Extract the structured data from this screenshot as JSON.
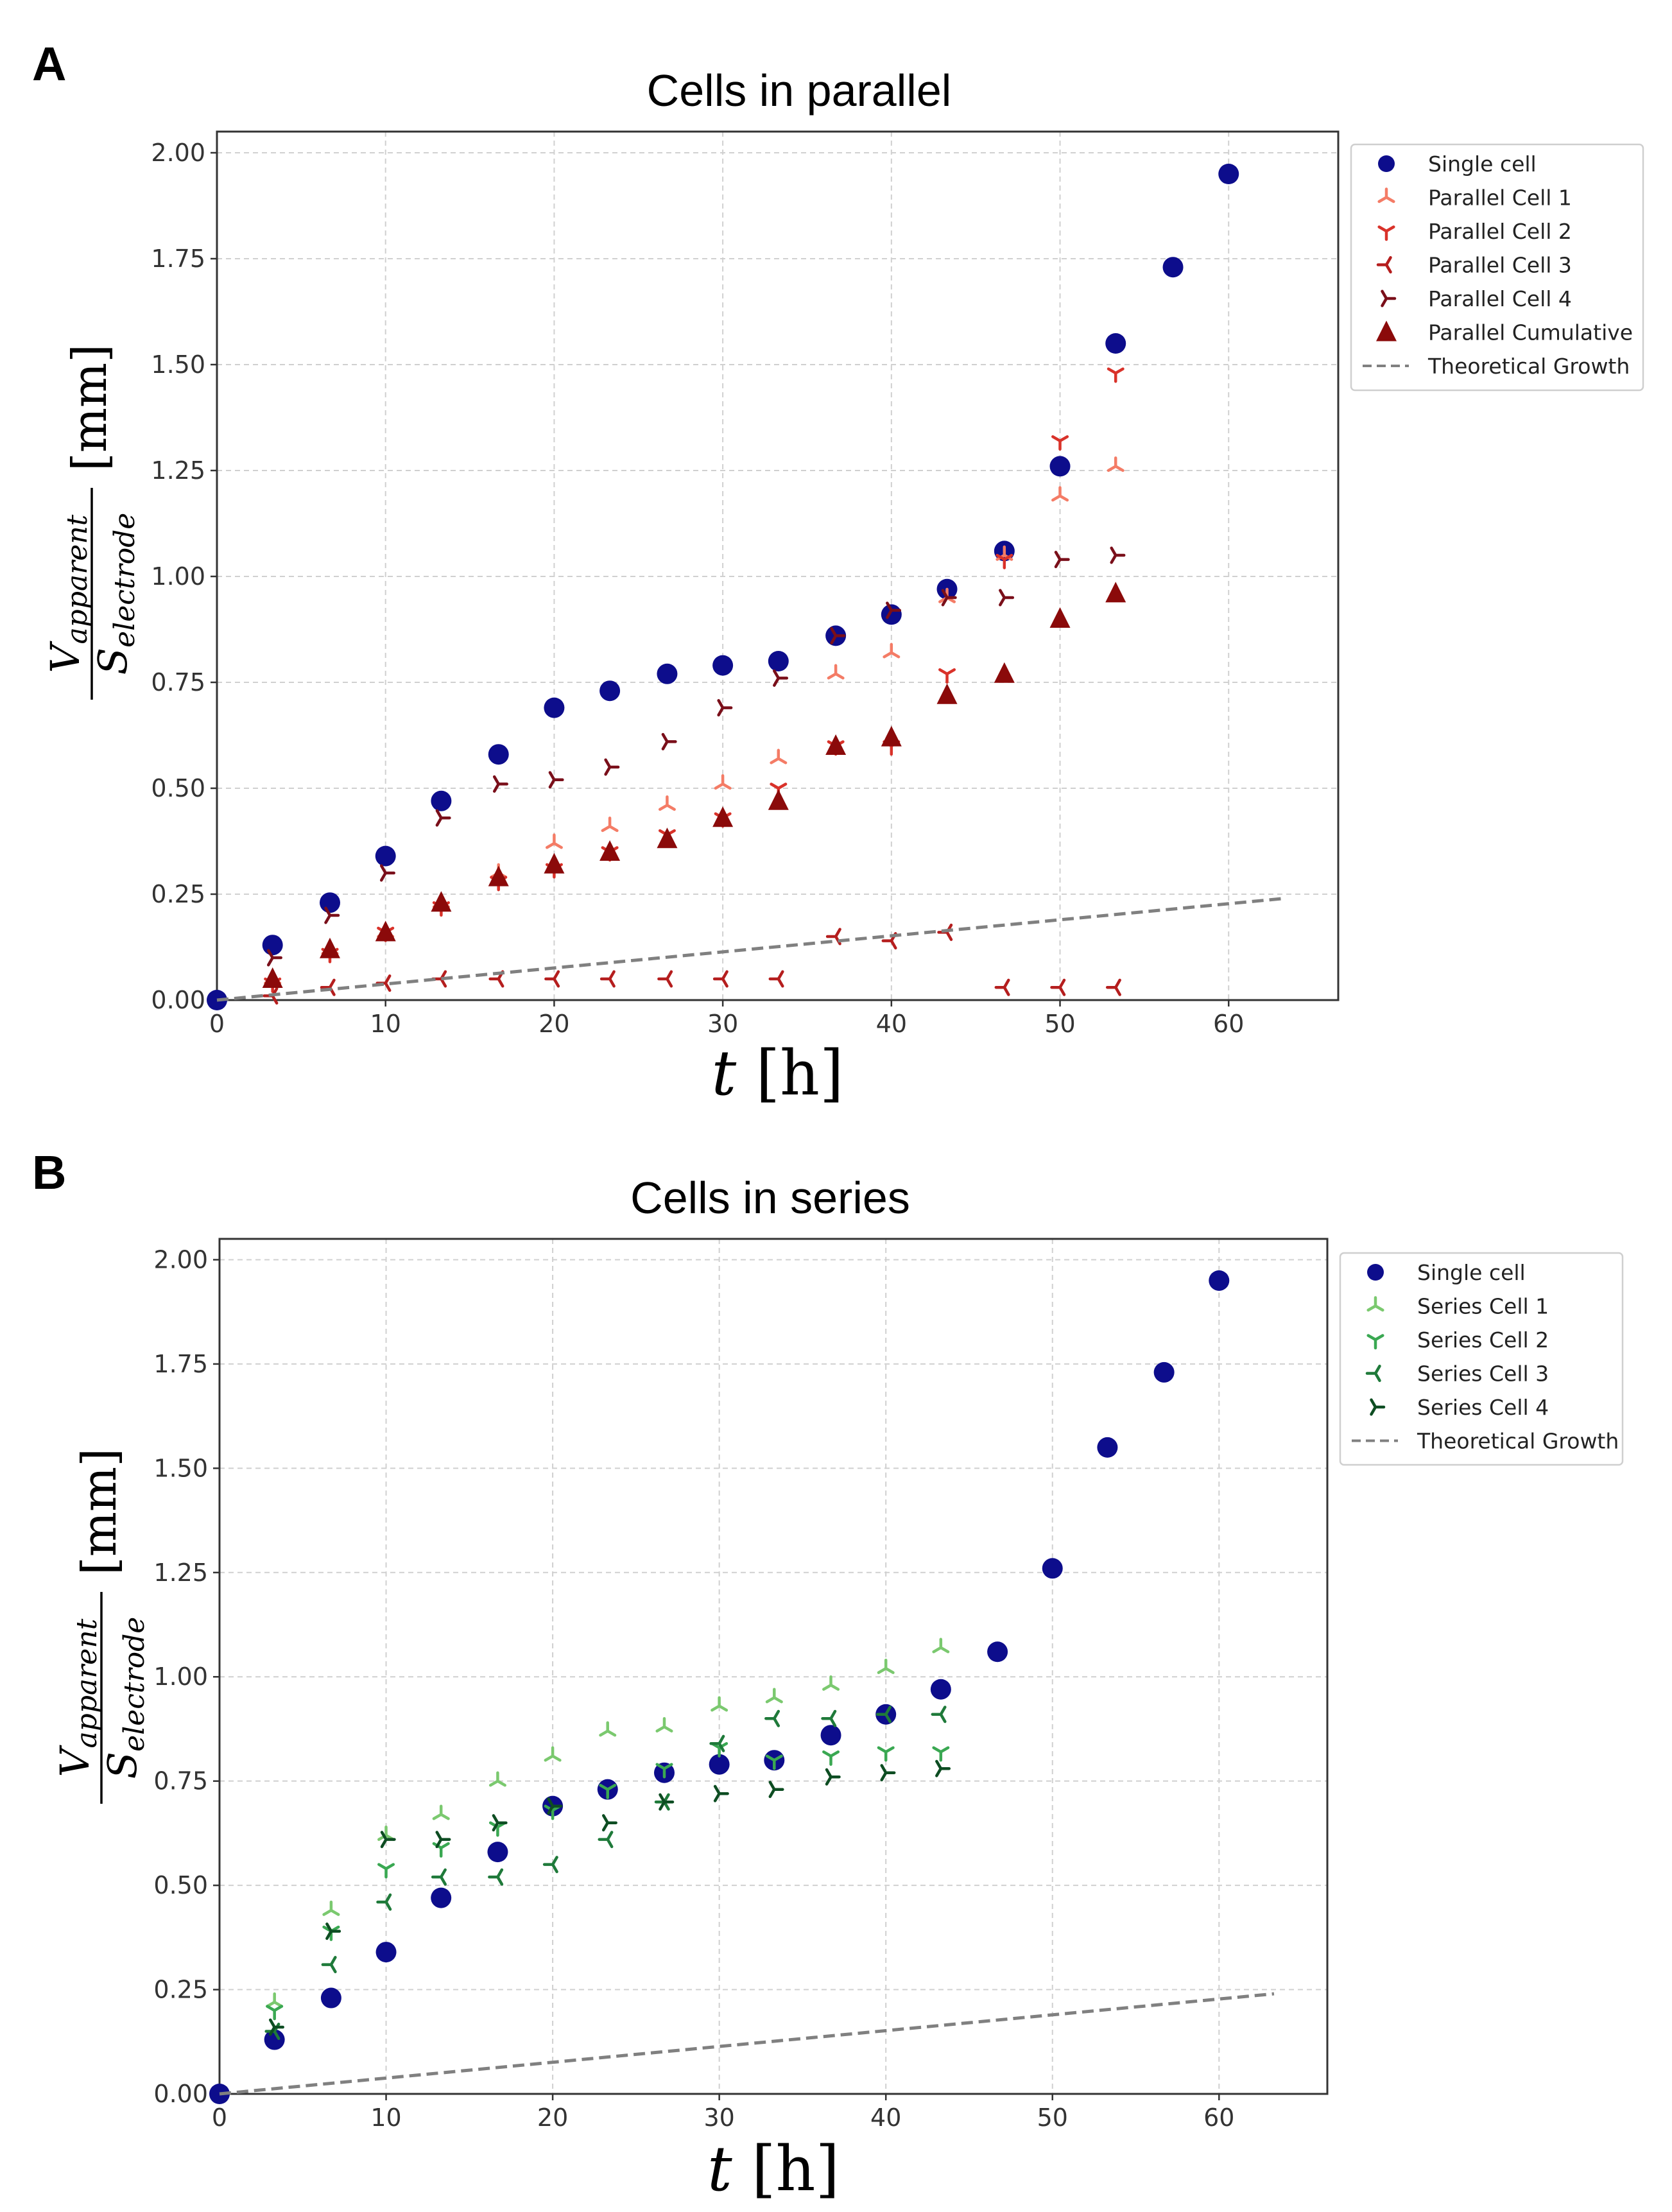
{
  "panels": [
    {
      "letter": "A",
      "chart_data": {
        "type": "scatter",
        "title": "Cells in parallel",
        "xlabel_var": "t",
        "xlabel_unit": "[h]",
        "ylabel_num": "V",
        "ylabel_num_sub": "apparent",
        "ylabel_den": "S",
        "ylabel_den_sub": "electrode",
        "ylabel_unit": "[mm]",
        "xlim": [
          0,
          66.5
        ],
        "ylim": [
          0,
          2.05
        ],
        "xticks": [
          0,
          10,
          20,
          30,
          40,
          50,
          60
        ],
        "yticks": [
          0,
          0.25,
          0.5,
          0.75,
          1.0,
          1.25,
          1.5,
          1.75,
          2.0
        ],
        "xtick_labels": [
          "0",
          "10",
          "20",
          "30",
          "40",
          "50",
          "60"
        ],
        "ytick_labels": [
          "0.00",
          "0.25",
          "0.50",
          "0.75",
          "1.00",
          "1.25",
          "1.50",
          "1.75",
          "2.00"
        ],
        "grid": true,
        "legend_position": "outside-top-right",
        "series": [
          {
            "name": "Single cell",
            "marker": "circle",
            "color": "#0d0d8c",
            "x": [
              0,
              3.3,
              6.7,
              10,
              13.3,
              16.7,
              20,
              23.3,
              26.7,
              30,
              33.3,
              36.7,
              40,
              43.3,
              46.7,
              50,
              53.3,
              56.7,
              60
            ],
            "y": [
              0,
              0.13,
              0.23,
              0.34,
              0.47,
              0.58,
              0.69,
              0.73,
              0.77,
              0.79,
              0.8,
              0.86,
              0.91,
              0.97,
              1.06,
              1.26,
              1.55,
              1.73,
              1.95
            ]
          },
          {
            "name": "Parallel Cell 1",
            "marker": "tri_down",
            "color": "#f47c66",
            "x": [
              3.3,
              6.7,
              10,
              13.3,
              16.7,
              20,
              23.3,
              26.7,
              30,
              33.3,
              36.7,
              40,
              43.3,
              46.7,
              50,
              53.3
            ],
            "y": [
              0.05,
              0.12,
              0.16,
              0.23,
              0.3,
              0.37,
              0.41,
              0.46,
              0.51,
              0.57,
              0.77,
              0.82,
              0.95,
              1.05,
              1.19,
              1.26
            ]
          },
          {
            "name": "Parallel Cell 2",
            "marker": "tri_up",
            "color": "#d9322a",
            "x": [
              3.3,
              6.7,
              10,
              13.3,
              16.7,
              20,
              23.3,
              26.7,
              30,
              33.3,
              36.7,
              40,
              43.3,
              46.7,
              50,
              53.3
            ],
            "y": [
              0.04,
              0.11,
              0.16,
              0.22,
              0.28,
              0.31,
              0.35,
              0.39,
              0.43,
              0.5,
              0.6,
              0.6,
              0.77,
              1.04,
              1.32,
              1.48
            ]
          },
          {
            "name": "Parallel Cell 3",
            "marker": "tri_left",
            "color": "#b51e1e",
            "x": [
              3.3,
              6.7,
              10,
              13.3,
              16.7,
              20,
              23.3,
              26.7,
              30,
              33.3,
              36.7,
              40,
              43.3,
              46.7,
              50,
              53.3
            ],
            "y": [
              0.01,
              0.03,
              0.04,
              0.05,
              0.05,
              0.05,
              0.05,
              0.05,
              0.05,
              0.05,
              0.15,
              0.14,
              0.16,
              0.03,
              0.03,
              0.03
            ]
          },
          {
            "name": "Parallel Cell 4",
            "marker": "tri_right",
            "color": "#7a0f1a",
            "x": [
              3.3,
              6.7,
              10,
              13.3,
              16.7,
              20,
              23.3,
              26.7,
              30,
              33.3,
              36.7,
              40,
              43.3,
              46.7,
              50,
              53.3
            ],
            "y": [
              0.1,
              0.2,
              0.3,
              0.43,
              0.51,
              0.52,
              0.55,
              0.61,
              0.69,
              0.76,
              0.86,
              0.92,
              0.95,
              0.95,
              1.04,
              1.05
            ]
          },
          {
            "name": "Parallel Cumulative",
            "marker": "triangle_filled",
            "color": "#8b0a0a",
            "x": [
              3.3,
              6.7,
              10,
              13.3,
              16.7,
              20,
              23.3,
              26.7,
              30,
              33.3,
              36.7,
              40,
              43.3,
              46.7,
              50,
              53.3
            ],
            "y": [
              0.05,
              0.12,
              0.16,
              0.23,
              0.29,
              0.32,
              0.35,
              0.38,
              0.43,
              0.47,
              0.6,
              0.62,
              0.72,
              0.77,
              0.9,
              0.96
            ]
          },
          {
            "name": "Theoretical Growth",
            "marker": "dashed_line",
            "color": "#808080",
            "x": [
              0,
              63.3
            ],
            "y": [
              0,
              0.24
            ]
          }
        ]
      }
    },
    {
      "letter": "B",
      "chart_data": {
        "type": "scatter",
        "title": "Cells in series",
        "xlabel_var": "t",
        "xlabel_unit": "[h]",
        "ylabel_num": "V",
        "ylabel_num_sub": "apparent",
        "ylabel_den": "S",
        "ylabel_den_sub": "electrode",
        "ylabel_unit": "[mm]",
        "xlim": [
          0,
          66.5
        ],
        "ylim": [
          0,
          2.05
        ],
        "xticks": [
          0,
          10,
          20,
          30,
          40,
          50,
          60
        ],
        "yticks": [
          0,
          0.25,
          0.5,
          0.75,
          1.0,
          1.25,
          1.5,
          1.75,
          2.0
        ],
        "xtick_labels": [
          "0",
          "10",
          "20",
          "30",
          "40",
          "50",
          "60"
        ],
        "ytick_labels": [
          "0.00",
          "0.25",
          "0.50",
          "0.75",
          "1.00",
          "1.25",
          "1.50",
          "1.75",
          "2.00"
        ],
        "grid": true,
        "legend_position": "outside-top-right",
        "series": [
          {
            "name": "Single cell",
            "marker": "circle",
            "color": "#0d0d8c",
            "x": [
              0,
              3.3,
              6.7,
              10,
              13.3,
              16.7,
              20,
              23.3,
              26.7,
              30,
              33.3,
              36.7,
              40,
              43.3,
              46.7,
              50,
              53.3,
              56.7,
              60
            ],
            "y": [
              0,
              0.13,
              0.23,
              0.34,
              0.47,
              0.58,
              0.69,
              0.73,
              0.77,
              0.79,
              0.8,
              0.86,
              0.91,
              0.97,
              1.06,
              1.26,
              1.55,
              1.73,
              1.95
            ]
          },
          {
            "name": "Series Cell 1",
            "marker": "tri_down",
            "color": "#7bc96f",
            "x": [
              3.3,
              6.7,
              10,
              13.3,
              16.7,
              20,
              23.3,
              26.7,
              30,
              33.3,
              36.7,
              40,
              43.3
            ],
            "y": [
              0.22,
              0.44,
              0.62,
              0.67,
              0.75,
              0.81,
              0.87,
              0.88,
              0.93,
              0.95,
              0.98,
              1.02,
              1.07
            ]
          },
          {
            "name": "Series Cell 2",
            "marker": "tri_up",
            "color": "#3aa852",
            "x": [
              3.3,
              6.7,
              10,
              13.3,
              16.7,
              20,
              23.3,
              26.7,
              30,
              33.3,
              36.7,
              40,
              43.3
            ],
            "y": [
              0.2,
              0.39,
              0.54,
              0.59,
              0.64,
              0.68,
              0.73,
              0.78,
              0.83,
              0.8,
              0.81,
              0.82,
              0.82
            ]
          },
          {
            "name": "Series Cell 3",
            "marker": "tri_left",
            "color": "#1f7a3a",
            "x": [
              3.3,
              6.7,
              10,
              13.3,
              16.7,
              20,
              23.3,
              26.7,
              30,
              33.3,
              36.7,
              40,
              43.3
            ],
            "y": [
              0.15,
              0.31,
              0.46,
              0.52,
              0.52,
              0.55,
              0.61,
              0.7,
              0.84,
              0.9,
              0.9,
              0.91,
              0.91
            ]
          },
          {
            "name": "Series Cell 4",
            "marker": "tri_right",
            "color": "#0d4d22",
            "x": [
              3.3,
              6.7,
              10,
              13.3,
              16.7,
              20,
              23.3,
              26.7,
              30,
              33.3,
              36.7,
              40,
              43.3
            ],
            "y": [
              0.16,
              0.39,
              0.61,
              0.61,
              0.65,
              0.69,
              0.65,
              0.7,
              0.72,
              0.73,
              0.76,
              0.77,
              0.78
            ]
          },
          {
            "name": "Theoretical Growth",
            "marker": "dashed_line",
            "color": "#808080",
            "x": [
              0,
              63.3
            ],
            "y": [
              0,
              0.24
            ]
          }
        ]
      }
    }
  ]
}
